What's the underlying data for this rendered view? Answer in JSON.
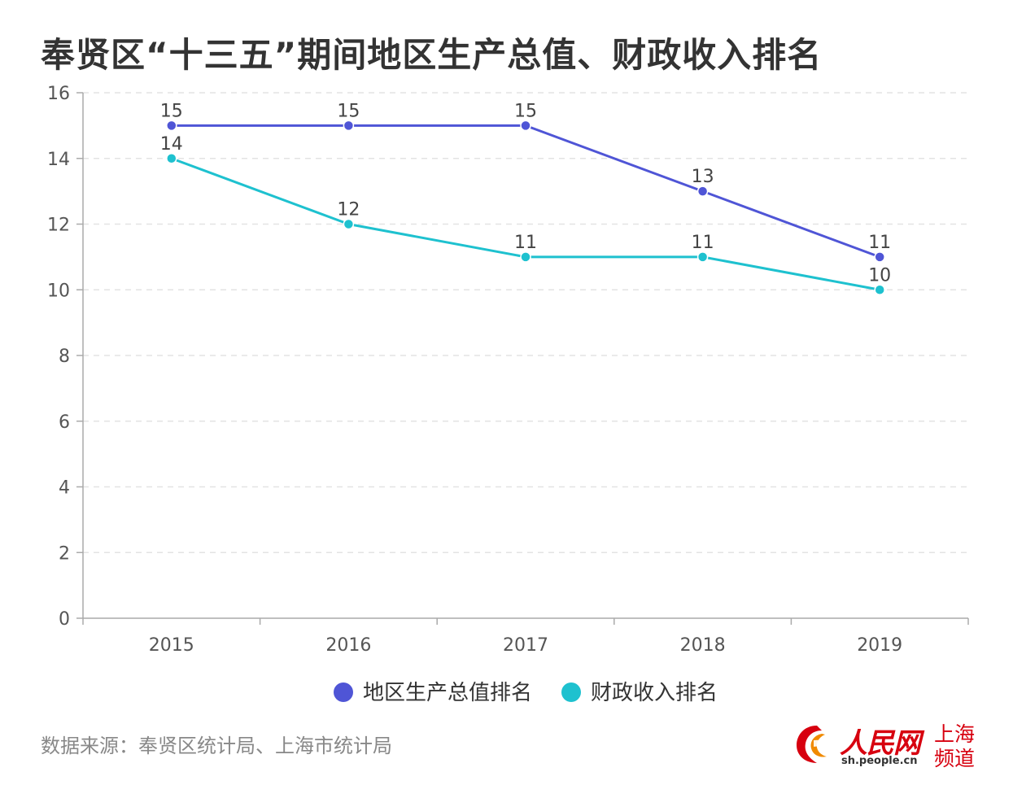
{
  "header": {
    "title": "奉贤区“十三五”期间地区生产总值、财政收入排名"
  },
  "chart_data": {
    "type": "line",
    "title": "奉贤区“十三五”期间地区生产总值、财政收入排名",
    "categories": [
      "2015",
      "2016",
      "2017",
      "2018",
      "2019"
    ],
    "ylim": [
      0,
      16
    ],
    "yticks": [
      0,
      2,
      4,
      6,
      8,
      10,
      12,
      14,
      16
    ],
    "grid": true,
    "legend_position": "bottom",
    "series": [
      {
        "name": "地区生产总值排名",
        "values": [
          15,
          15,
          15,
          13,
          11
        ],
        "color": "#4f55d6"
      },
      {
        "name": "财政收入排名",
        "values": [
          14,
          12,
          11,
          11,
          10
        ],
        "color": "#1ec1cf"
      }
    ]
  },
  "footer": {
    "source": "数据来源：奉贤区统计局、上海市统计局"
  },
  "logo": {
    "name": "人民网",
    "url": "sh.people.cn",
    "channel": "上海频道",
    "color": "#d7000f"
  }
}
